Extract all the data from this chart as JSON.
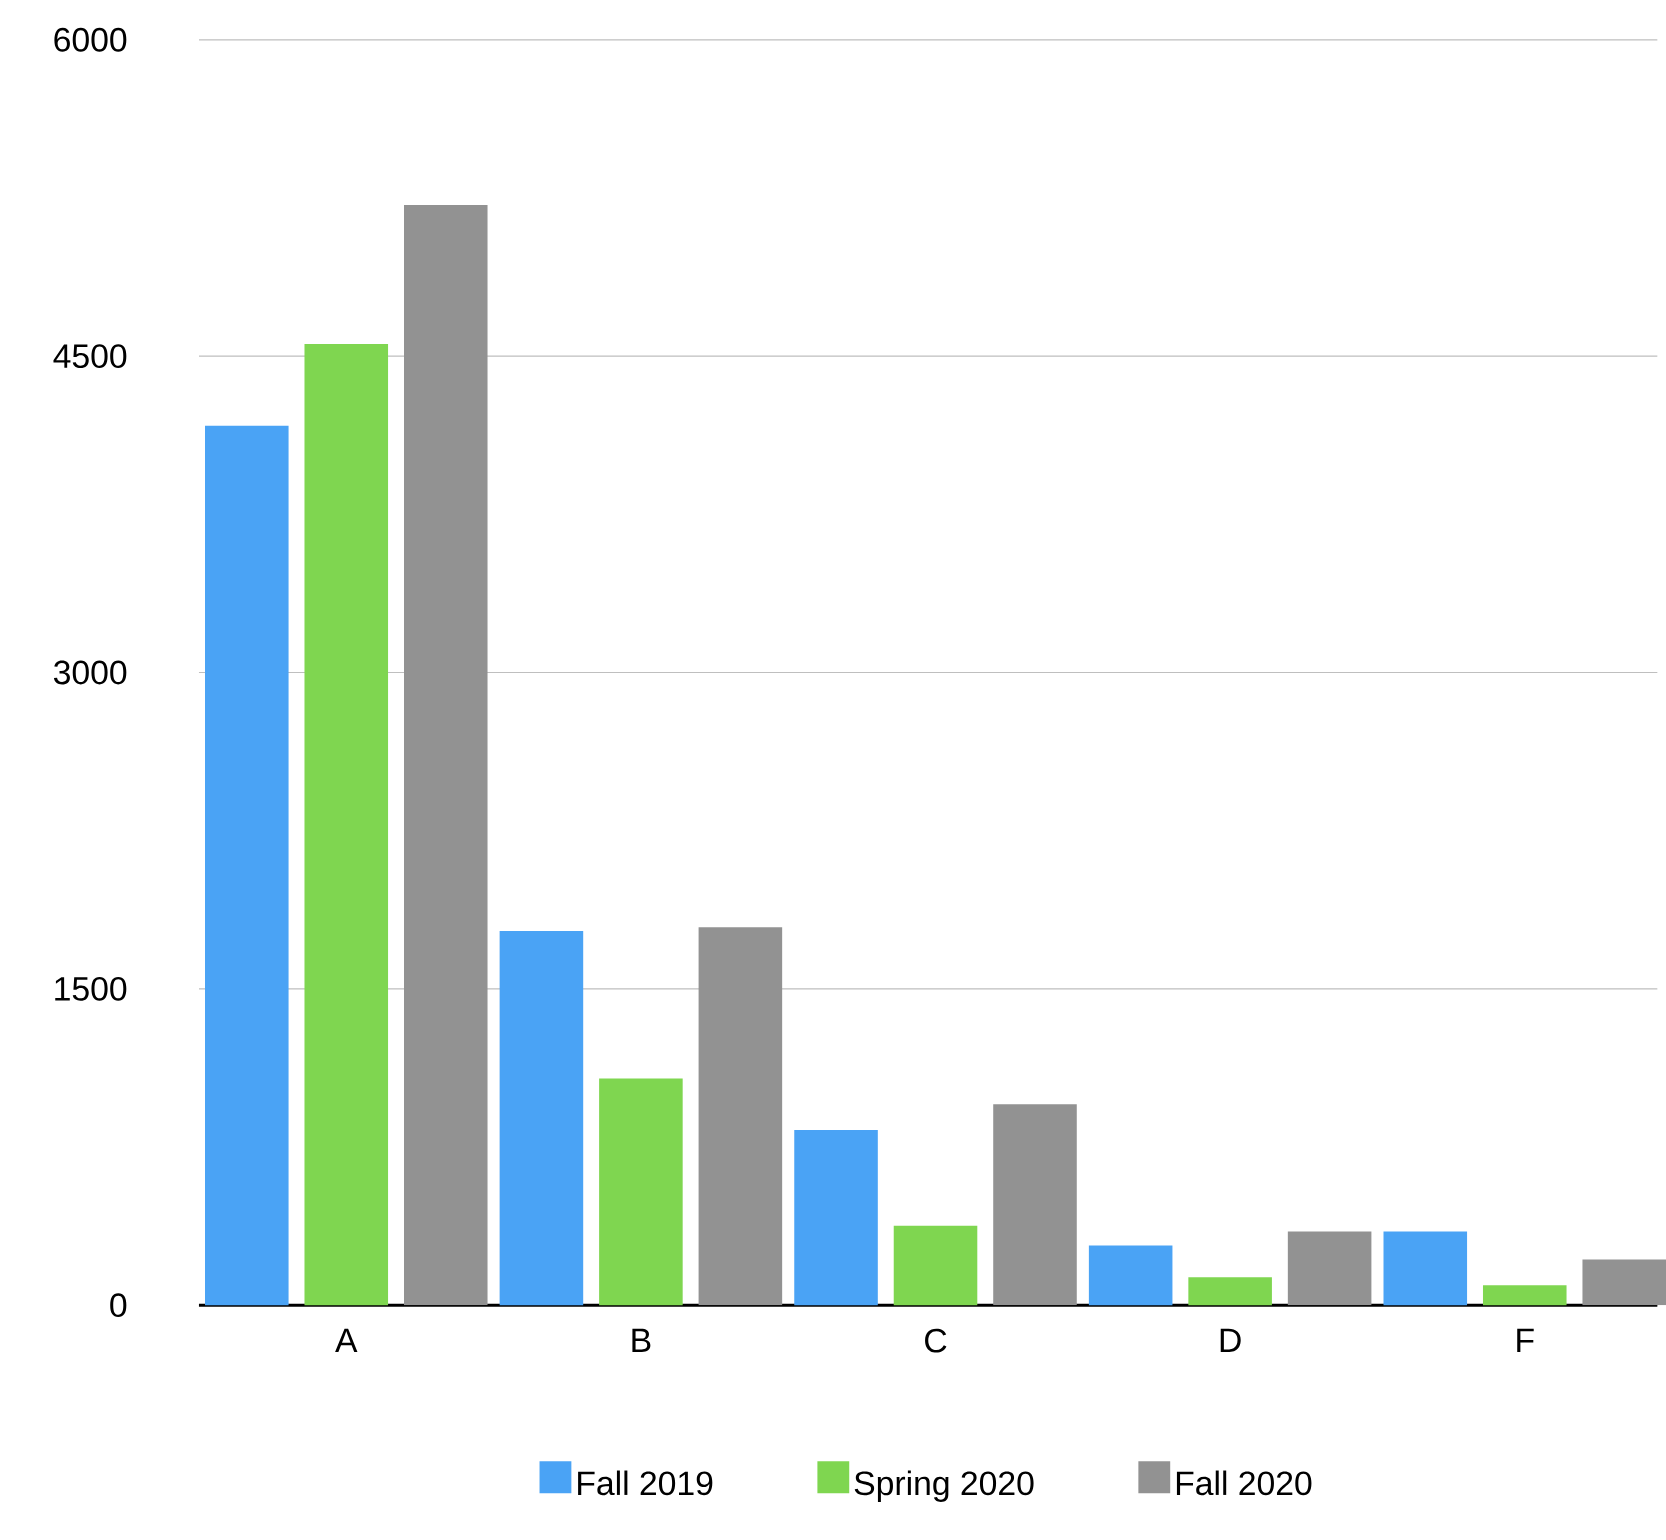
{
  "chart_data": {
    "type": "bar",
    "categories": [
      "A",
      "B",
      "C",
      "D",
      "F"
    ],
    "series": [
      {
        "name": "Fall 2019",
        "color": "#4aa3f5",
        "values": [
          4170,
          1774,
          830,
          283,
          349
        ]
      },
      {
        "name": "Spring 2020",
        "color": "#7fd650",
        "values": [
          4557,
          1075,
          377,
          132,
          94
        ]
      },
      {
        "name": "Fall 2020",
        "color": "#929292",
        "values": [
          5217,
          1792,
          953,
          349,
          217
        ]
      }
    ],
    "ylim": [
      0,
      6000
    ],
    "yticks": [
      0,
      1500,
      3000,
      4500,
      6000
    ],
    "grid": "y",
    "legend": "bottom"
  }
}
